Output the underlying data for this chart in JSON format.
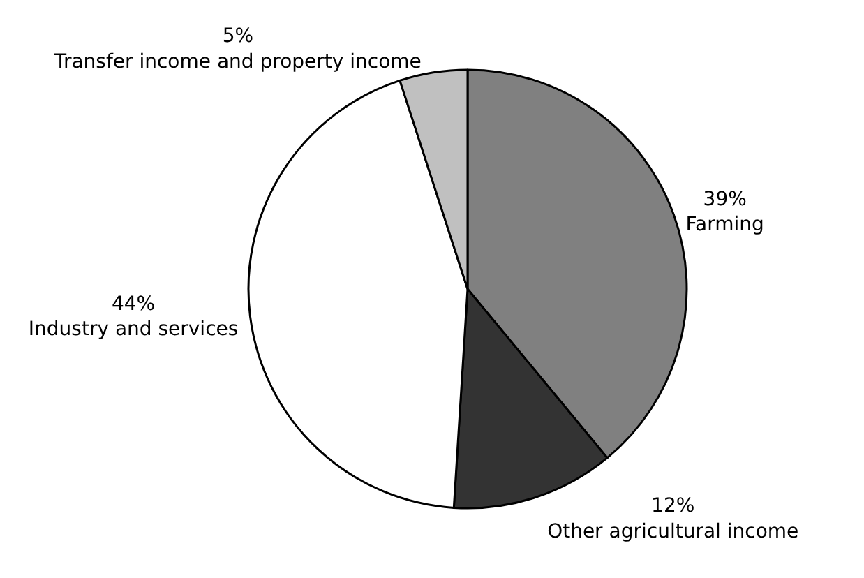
{
  "chart_data": {
    "type": "pie",
    "categories": [
      "Farming",
      "Other agricultural income",
      "Industry and services",
      "Transfer income and property income"
    ],
    "values": [
      39,
      12,
      44,
      5
    ],
    "colors": [
      "#808080",
      "#333333",
      "#ffffff",
      "#c0c0c0"
    ],
    "value_labels": [
      "39%",
      "12%",
      "44%",
      "5%"
    ]
  }
}
